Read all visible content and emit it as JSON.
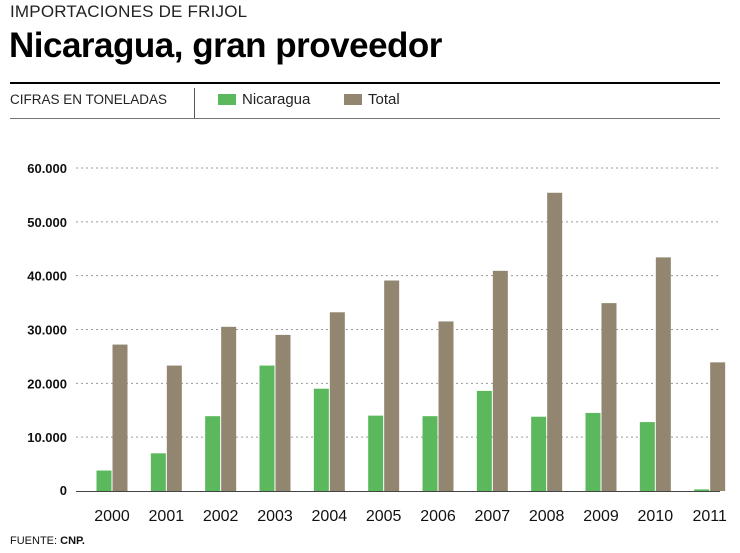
{
  "header": {
    "kicker": "IMPORTACIONES DE FRIJOL",
    "title": "Nicaragua, gran proveedor"
  },
  "legend": {
    "units": "CIFRAS EN TONELADAS",
    "items": [
      {
        "label": "Nicaragua",
        "color": "#5cb85c"
      },
      {
        "label": "Total",
        "color": "#938671"
      }
    ]
  },
  "chart_data": {
    "type": "bar",
    "title": "Nicaragua, gran proveedor",
    "ylabel": "CIFRAS EN TONELADAS",
    "xlabel": "",
    "categories": [
      "2000",
      "2001",
      "2002",
      "2003",
      "2004",
      "2005",
      "2006",
      "2007",
      "2008",
      "2009",
      "2010",
      "2011"
    ],
    "series": [
      {
        "name": "Nicaragua",
        "color": "#5cb85c",
        "values": [
          3800,
          7000,
          13900,
          23300,
          19000,
          14000,
          13900,
          18600,
          13800,
          14500,
          12800,
          300
        ]
      },
      {
        "name": "Total",
        "color": "#938671",
        "values": [
          27200,
          23300,
          30500,
          29000,
          33200,
          39100,
          31500,
          40900,
          55400,
          34900,
          43400,
          23900
        ]
      }
    ],
    "ylim": [
      0,
      60000
    ],
    "yticks": [
      0,
      10000,
      20000,
      30000,
      40000,
      50000,
      60000
    ],
    "ytick_labels": [
      "0",
      "10.000",
      "20.000",
      "30.000",
      "40.000",
      "50.000",
      "60.000"
    ],
    "grid": true
  },
  "footer": {
    "source_label": "FUENTE:",
    "source_value": "CNP."
  }
}
